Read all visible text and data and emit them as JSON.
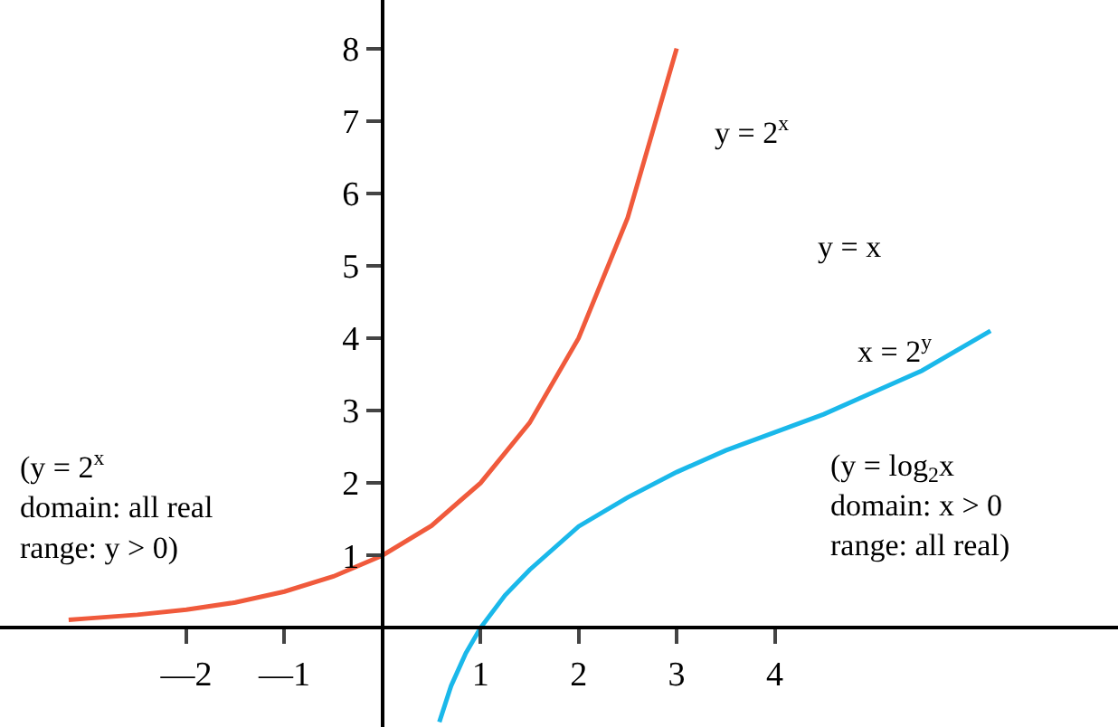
{
  "chart_data": {
    "type": "line",
    "xlim": [
      -3.9,
      7.5
    ],
    "ylim": [
      -1.37,
      8.67
    ],
    "xticks": [
      {
        "value": -2,
        "label": "—2"
      },
      {
        "value": -1,
        "label": "—1"
      },
      1,
      2,
      3,
      4
    ],
    "yticks": [
      1,
      2,
      3,
      4,
      5,
      6,
      7,
      8
    ],
    "legend": false,
    "marker": "none",
    "line_style": "solid",
    "series": [
      {
        "color": "#f05a3c",
        "x": [
          -3.2,
          -3,
          -2.5,
          -2,
          -1.5,
          -1,
          -0.5,
          0,
          0.5,
          1,
          1.5,
          2,
          2.5,
          3
        ],
        "values": [
          0.11,
          0.13,
          0.18,
          0.25,
          0.35,
          0.5,
          0.71,
          1,
          1.41,
          2,
          2.83,
          4,
          5.66,
          8
        ]
      },
      {
        "color": "#1ab8ea",
        "x": [
          0.58,
          0.7,
          0.85,
          1,
          1.25,
          1.5,
          2,
          2.5,
          3,
          3.5,
          4,
          4.5,
          5,
          5.5,
          6.2
        ],
        "values": [
          -1.3,
          -0.8,
          -0.35,
          0,
          0.45,
          0.8,
          1.4,
          1.8,
          2.15,
          2.45,
          2.7,
          2.95,
          3.25,
          3.55,
          4.1
        ]
      }
    ],
    "annotations": [
      "y = 2$^{x}$",
      "y = x",
      "x = 2$^{y}$",
      "(y = log$_{2}$x\ndomain: x > 0\nrange: all real)",
      "(y = 2$^{x}$\ndomain: all real\nrange: y > 0)"
    ]
  }
}
